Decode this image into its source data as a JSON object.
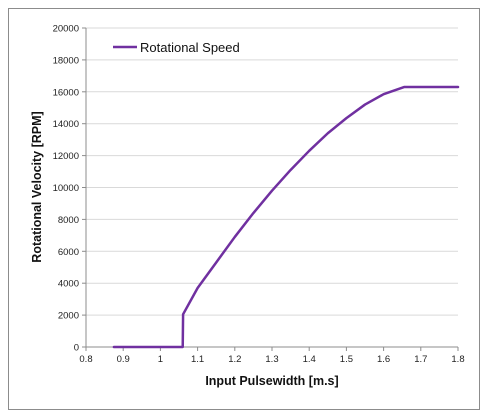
{
  "chart_data": {
    "type": "line",
    "xlabel": "Input Pulsewidth [m.s]",
    "ylabel": "Rotational Velocity [RPM]",
    "xlim": [
      0.8,
      1.8
    ],
    "ylim": [
      0,
      20000
    ],
    "xticks": [
      "0.8",
      "0.9",
      "1",
      "1.1",
      "1.2",
      "1.3",
      "1.4",
      "1.5",
      "1.6",
      "1.7",
      "1.8"
    ],
    "yticks": [
      "0",
      "2000",
      "4000",
      "6000",
      "8000",
      "10000",
      "12000",
      "14000",
      "16000",
      "18000",
      "20000"
    ],
    "grid": "horizontal",
    "legend_position": "top-left",
    "series": [
      {
        "name": "Rotational Speed",
        "color": "#7030a0",
        "x": [
          0.875,
          1.06,
          1.061,
          1.1,
          1.15,
          1.2,
          1.25,
          1.3,
          1.35,
          1.4,
          1.45,
          1.5,
          1.55,
          1.6,
          1.655,
          1.8
        ],
        "y": [
          0,
          0,
          2050,
          3700,
          5300,
          6900,
          8400,
          9800,
          11100,
          12300,
          13400,
          14350,
          15200,
          15850,
          16300,
          16300
        ]
      }
    ]
  }
}
